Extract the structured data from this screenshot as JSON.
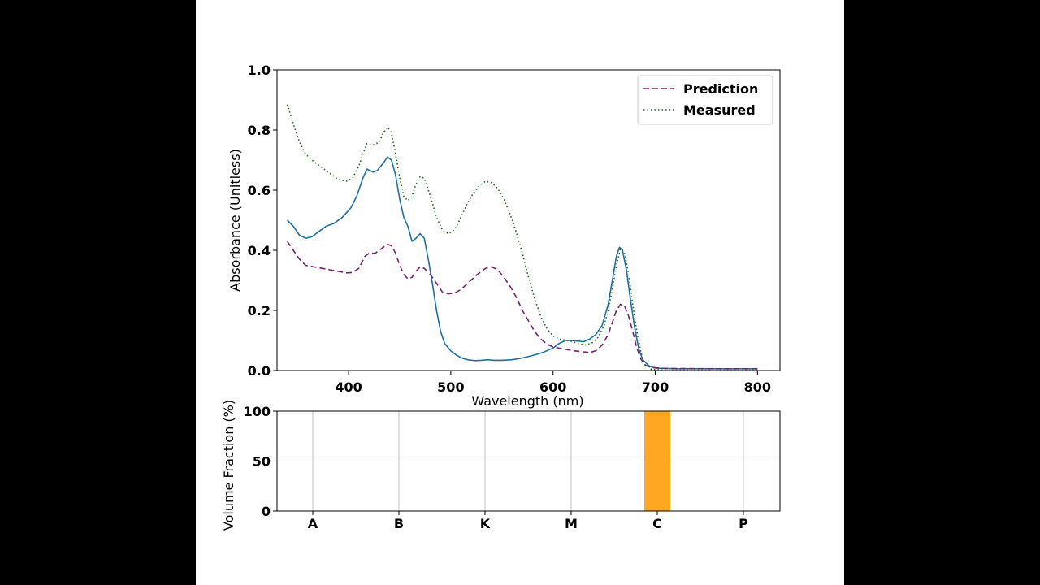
{
  "chart_data": [
    {
      "type": "line",
      "xlabel": "Wavelength (nm)",
      "ylabel": "Absorbance (Unitless)",
      "xlim": [
        330,
        822
      ],
      "ylim": [
        0,
        1.0
      ],
      "xticks": [
        400,
        500,
        600,
        700,
        800
      ],
      "yticks": [
        0.0,
        0.2,
        0.4,
        0.6,
        0.8,
        1.0
      ],
      "legend_position": "top-right",
      "grid": false,
      "series": [
        {
          "name": "",
          "style": "solid",
          "color": "#1f6f9f",
          "points": [
            [
              340,
              0.5
            ],
            [
              346,
              0.48
            ],
            [
              352,
              0.45
            ],
            [
              358,
              0.44
            ],
            [
              364,
              0.445
            ],
            [
              370,
              0.46
            ],
            [
              378,
              0.48
            ],
            [
              386,
              0.49
            ],
            [
              394,
              0.51
            ],
            [
              402,
              0.54
            ],
            [
              408,
              0.58
            ],
            [
              414,
              0.64
            ],
            [
              418,
              0.67
            ],
            [
              424,
              0.66
            ],
            [
              428,
              0.665
            ],
            [
              434,
              0.69
            ],
            [
              438,
              0.71
            ],
            [
              442,
              0.7
            ],
            [
              446,
              0.65
            ],
            [
              450,
              0.57
            ],
            [
              454,
              0.51
            ],
            [
              458,
              0.48
            ],
            [
              462,
              0.43
            ],
            [
              466,
              0.44
            ],
            [
              470,
              0.455
            ],
            [
              474,
              0.44
            ],
            [
              478,
              0.37
            ],
            [
              482,
              0.29
            ],
            [
              486,
              0.2
            ],
            [
              490,
              0.13
            ],
            [
              494,
              0.09
            ],
            [
              500,
              0.065
            ],
            [
              506,
              0.05
            ],
            [
              512,
              0.04
            ],
            [
              518,
              0.035
            ],
            [
              524,
              0.033
            ],
            [
              530,
              0.034
            ],
            [
              536,
              0.036
            ],
            [
              542,
              0.034
            ],
            [
              550,
              0.034
            ],
            [
              560,
              0.036
            ],
            [
              570,
              0.042
            ],
            [
              580,
              0.05
            ],
            [
              590,
              0.06
            ],
            [
              600,
              0.075
            ],
            [
              606,
              0.09
            ],
            [
              612,
              0.1
            ],
            [
              618,
              0.1
            ],
            [
              624,
              0.098
            ],
            [
              630,
              0.096
            ],
            [
              636,
              0.105
            ],
            [
              642,
              0.12
            ],
            [
              648,
              0.15
            ],
            [
              654,
              0.22
            ],
            [
              658,
              0.3
            ],
            [
              662,
              0.38
            ],
            [
              665,
              0.41
            ],
            [
              668,
              0.4
            ],
            [
              672,
              0.33
            ],
            [
              676,
              0.23
            ],
            [
              680,
              0.14
            ],
            [
              684,
              0.07
            ],
            [
              688,
              0.035
            ],
            [
              694,
              0.015
            ],
            [
              700,
              0.008
            ],
            [
              720,
              0.006
            ],
            [
              760,
              0.006
            ],
            [
              800,
              0.006
            ]
          ]
        },
        {
          "name": "Prediction",
          "style": "dashed",
          "color": "#7a1f6f",
          "points": [
            [
              340,
              0.43
            ],
            [
              346,
              0.4
            ],
            [
              352,
              0.37
            ],
            [
              358,
              0.35
            ],
            [
              366,
              0.345
            ],
            [
              374,
              0.34
            ],
            [
              382,
              0.335
            ],
            [
              390,
              0.33
            ],
            [
              398,
              0.325
            ],
            [
              404,
              0.326
            ],
            [
              410,
              0.34
            ],
            [
              416,
              0.38
            ],
            [
              420,
              0.39
            ],
            [
              426,
              0.39
            ],
            [
              432,
              0.405
            ],
            [
              438,
              0.42
            ],
            [
              442,
              0.415
            ],
            [
              446,
              0.39
            ],
            [
              450,
              0.35
            ],
            [
              454,
              0.32
            ],
            [
              458,
              0.305
            ],
            [
              462,
              0.31
            ],
            [
              466,
              0.33
            ],
            [
              470,
              0.345
            ],
            [
              474,
              0.34
            ],
            [
              480,
              0.32
            ],
            [
              486,
              0.29
            ],
            [
              492,
              0.26
            ],
            [
              498,
              0.255
            ],
            [
              504,
              0.258
            ],
            [
              510,
              0.27
            ],
            [
              518,
              0.295
            ],
            [
              526,
              0.32
            ],
            [
              534,
              0.34
            ],
            [
              540,
              0.345
            ],
            [
              546,
              0.335
            ],
            [
              552,
              0.31
            ],
            [
              558,
              0.28
            ],
            [
              564,
              0.245
            ],
            [
              570,
              0.2
            ],
            [
              576,
              0.165
            ],
            [
              582,
              0.13
            ],
            [
              588,
              0.105
            ],
            [
              594,
              0.088
            ],
            [
              600,
              0.078
            ],
            [
              610,
              0.072
            ],
            [
              620,
              0.066
            ],
            [
              630,
              0.062
            ],
            [
              636,
              0.06
            ],
            [
              642,
              0.066
            ],
            [
              648,
              0.085
            ],
            [
              654,
              0.12
            ],
            [
              658,
              0.16
            ],
            [
              662,
              0.2
            ],
            [
              666,
              0.22
            ],
            [
              670,
              0.215
            ],
            [
              674,
              0.18
            ],
            [
              678,
              0.13
            ],
            [
              682,
              0.075
            ],
            [
              686,
              0.038
            ],
            [
              690,
              0.018
            ],
            [
              696,
              0.01
            ],
            [
              710,
              0.007
            ],
            [
              760,
              0.006
            ],
            [
              800,
              0.006
            ]
          ]
        },
        {
          "name": "Measured",
          "style": "dotted",
          "color": "#1a6b1a",
          "points": [
            [
              340,
              0.885
            ],
            [
              346,
              0.82
            ],
            [
              352,
              0.76
            ],
            [
              358,
              0.72
            ],
            [
              366,
              0.695
            ],
            [
              374,
              0.675
            ],
            [
              382,
              0.655
            ],
            [
              390,
              0.635
            ],
            [
              398,
              0.63
            ],
            [
              404,
              0.64
            ],
            [
              410,
              0.68
            ],
            [
              414,
              0.72
            ],
            [
              418,
              0.755
            ],
            [
              424,
              0.75
            ],
            [
              430,
              0.76
            ],
            [
              434,
              0.79
            ],
            [
              438,
              0.81
            ],
            [
              442,
              0.79
            ],
            [
              446,
              0.72
            ],
            [
              450,
              0.64
            ],
            [
              454,
              0.58
            ],
            [
              458,
              0.565
            ],
            [
              462,
              0.58
            ],
            [
              466,
              0.62
            ],
            [
              470,
              0.645
            ],
            [
              474,
              0.64
            ],
            [
              480,
              0.58
            ],
            [
              486,
              0.51
            ],
            [
              492,
              0.465
            ],
            [
              498,
              0.455
            ],
            [
              504,
              0.47
            ],
            [
              510,
              0.51
            ],
            [
              516,
              0.555
            ],
            [
              522,
              0.59
            ],
            [
              528,
              0.615
            ],
            [
              534,
              0.63
            ],
            [
              540,
              0.625
            ],
            [
              546,
              0.605
            ],
            [
              552,
              0.57
            ],
            [
              558,
              0.52
            ],
            [
              564,
              0.46
            ],
            [
              570,
              0.39
            ],
            [
              576,
              0.31
            ],
            [
              582,
              0.24
            ],
            [
              588,
              0.18
            ],
            [
              594,
              0.14
            ],
            [
              600,
              0.115
            ],
            [
              606,
              0.105
            ],
            [
              614,
              0.1
            ],
            [
              620,
              0.095
            ],
            [
              626,
              0.088
            ],
            [
              632,
              0.085
            ],
            [
              638,
              0.092
            ],
            [
              644,
              0.11
            ],
            [
              650,
              0.15
            ],
            [
              654,
              0.2
            ],
            [
              658,
              0.27
            ],
            [
              662,
              0.35
            ],
            [
              666,
              0.405
            ],
            [
              670,
              0.39
            ],
            [
              674,
              0.32
            ],
            [
              678,
              0.22
            ],
            [
              682,
              0.13
            ],
            [
              686,
              0.06
            ],
            [
              690,
              0.02
            ],
            [
              696,
              0.004
            ],
            [
              710,
              0.001
            ],
            [
              760,
              0.001
            ],
            [
              800,
              0.001
            ]
          ]
        }
      ]
    },
    {
      "type": "bar",
      "xlabel": "",
      "ylabel": "Volume Fraction (%)",
      "ylim": [
        0,
        100
      ],
      "yticks": [
        0,
        50,
        100
      ],
      "grid": true,
      "categories": [
        "A",
        "B",
        "K",
        "M",
        "C",
        "P"
      ],
      "values": [
        0,
        0,
        0,
        0,
        100,
        0
      ],
      "bar_color": "#ffa623"
    }
  ]
}
